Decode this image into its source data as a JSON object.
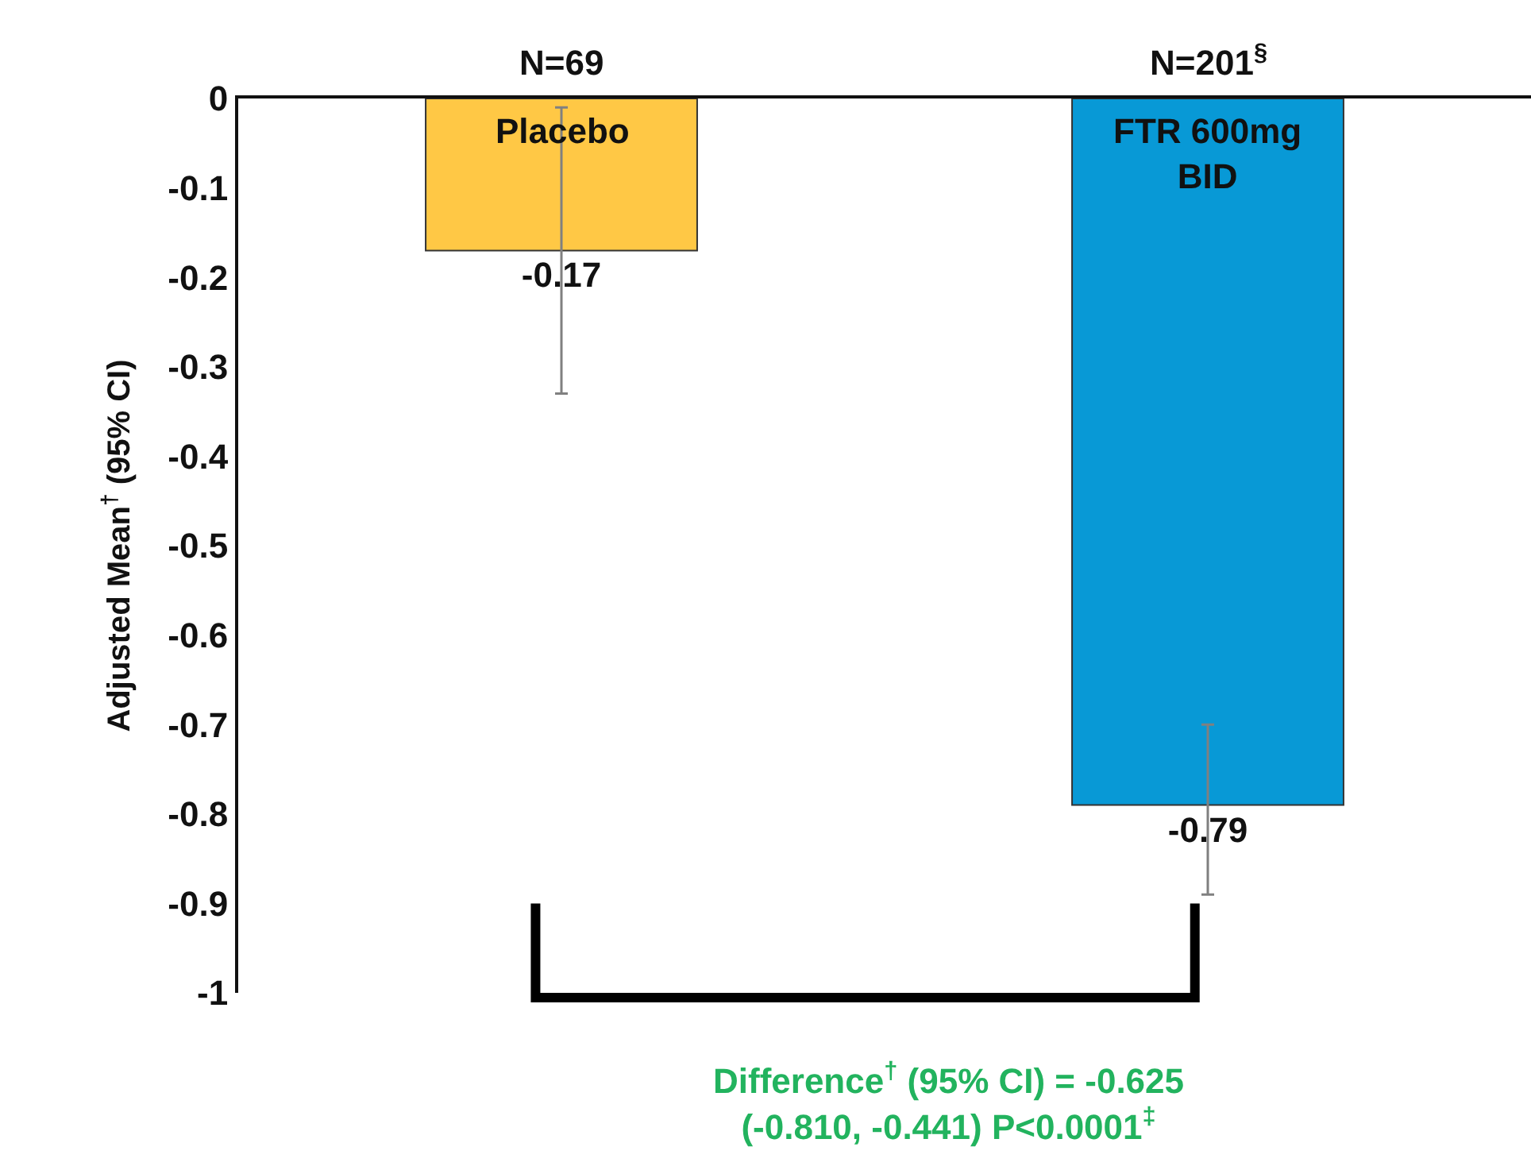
{
  "chart_data": {
    "type": "bar",
    "ylabel": "Adjusted Mean$^{†}$ (95% CI)",
    "categories": [
      "Placebo",
      "FTR 600mg BID"
    ],
    "values": [
      -0.17,
      -0.79
    ],
    "colors": [
      "#ffc845",
      "#0899d6"
    ],
    "errors": [
      [
        -0.33,
        -0.01
      ],
      [
        -0.89,
        -0.7
      ]
    ],
    "data_labels": true,
    "ylim": [
      -1,
      0
    ],
    "yticks": [
      -1,
      -0.9,
      -0.8,
      -0.7,
      -0.6,
      -0.5,
      -0.4,
      -0.3,
      -0.2,
      -0.1,
      0
    ],
    "grid": false,
    "tick_labels": "y",
    "annotations": [
      {
        "text": "N=69",
        "x": "Placebo",
        "y": 0
      },
      {
        "text": "N=201$^{§}$",
        "x": "FTR 600mg BID",
        "y": 0
      },
      "Difference$^{†}$ (95% CI) = -0.625 (-0.810, -0.441) P<0.0001$^{‡}$"
    ]
  }
}
